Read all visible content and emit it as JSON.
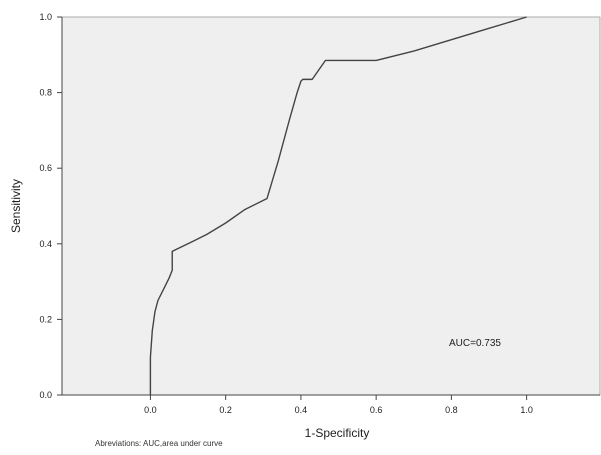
{
  "chart_data": {
    "type": "line",
    "xlabel": "1-Specificity",
    "ylabel": "Sensitivity",
    "xlim": [
      -0.235,
      1.195
    ],
    "ylim": [
      0,
      1.0
    ],
    "x_ticks": [
      "0.0",
      "0.2",
      "0.4",
      "0.6",
      "0.8",
      "1.0"
    ],
    "y_ticks": [
      "0.0",
      "0.2",
      "0.4",
      "0.6",
      "0.8",
      "1.0"
    ],
    "grid": false,
    "plot_background": "#efefef",
    "line_color": "#444444",
    "annotation": "AUC=0.735",
    "series": [
      {
        "x": [
          0.0,
          0.0,
          0.005,
          0.012,
          0.02,
          0.035,
          0.05,
          0.058,
          0.058,
          0.068,
          0.11,
          0.15,
          0.2,
          0.25,
          0.31,
          0.34,
          0.37,
          0.39,
          0.4,
          0.405,
          0.43,
          0.465,
          0.6,
          0.7,
          0.8,
          0.9,
          1.0
        ],
        "y": [
          0.0,
          0.1,
          0.17,
          0.22,
          0.25,
          0.28,
          0.31,
          0.33,
          0.38,
          0.385,
          0.405,
          0.425,
          0.455,
          0.49,
          0.52,
          0.62,
          0.73,
          0.8,
          0.83,
          0.835,
          0.835,
          0.885,
          0.885,
          0.91,
          0.94,
          0.97,
          1.0
        ]
      }
    ]
  },
  "footnote": "Abreviations: AUC,area under curve"
}
